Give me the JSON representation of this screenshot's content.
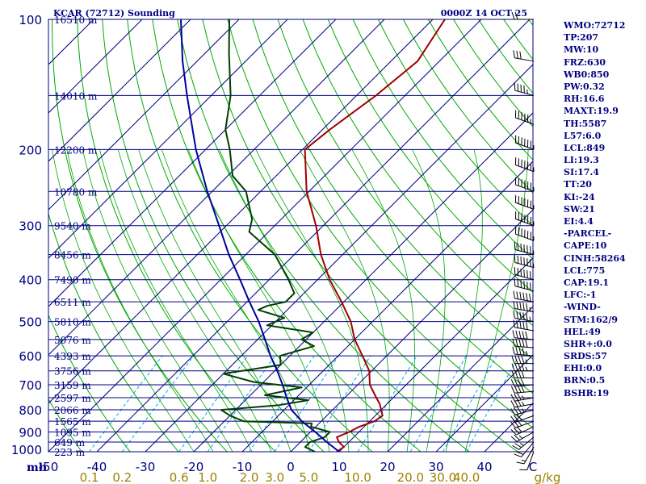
{
  "chart_data": {
    "type": "line",
    "title": "KCAR (72712) Sounding",
    "valid_time": "0000Z 14 OCT 25",
    "xlabel": "C",
    "mixing_ratio_unit": "g/kg",
    "pressure_unit": "mb",
    "xlim": [
      -50,
      50
    ],
    "ylim": [
      1000,
      100
    ],
    "y_scale": "log-pressure",
    "x_ticks": [
      "-50",
      "-40",
      "-30",
      "-20",
      "-10",
      "0",
      "10",
      "20",
      "30",
      "40",
      "C"
    ],
    "x_tick_values": [
      -50,
      -40,
      -30,
      -20,
      -10,
      0,
      10,
      20,
      30,
      40
    ],
    "pressure_ticks": [
      100,
      200,
      300,
      400,
      500,
      600,
      700,
      800,
      900,
      1000
    ],
    "height_levels": [
      {
        "p": 100,
        "label": "16510 m"
      },
      {
        "p": 150,
        "label": "14010 m"
      },
      {
        "p": 200,
        "label": "12200 m"
      },
      {
        "p": 250,
        "label": "10780 m"
      },
      {
        "p": 300,
        "label": "9540 m"
      },
      {
        "p": 350,
        "label": "8456 m"
      },
      {
        "p": 400,
        "label": "7490 m"
      },
      {
        "p": 450,
        "label": "6511 m"
      },
      {
        "p": 500,
        "label": "5810 m"
      },
      {
        "p": 550,
        "label": "5076 m"
      },
      {
        "p": 600,
        "label": "4393 m"
      },
      {
        "p": 650,
        "label": "3756 m"
      },
      {
        "p": 700,
        "label": "3159 m"
      },
      {
        "p": 750,
        "label": "2597 m"
      },
      {
        "p": 800,
        "label": "2066 m"
      },
      {
        "p": 850,
        "label": "1565 m"
      },
      {
        "p": 900,
        "label": "1095 m"
      },
      {
        "p": 950,
        "label": "649 m"
      },
      {
        "p": 1000,
        "label": "223 m"
      }
    ],
    "mixing_ratio_ticks": [
      {
        "label": "0.1",
        "value": 0.1
      },
      {
        "label": "0.2",
        "value": 0.2
      },
      {
        "label": "0.6",
        "value": 0.6
      },
      {
        "label": "1.0",
        "value": 1.0
      },
      {
        "label": "2.0",
        "value": 2.0
      },
      {
        "label": "3.0",
        "value": 3.0
      },
      {
        "label": "5.0",
        "value": 5.0
      },
      {
        "label": "10.0",
        "value": 10.0
      },
      {
        "label": "20.0",
        "value": 20.0
      },
      {
        "label": "30.0",
        "value": 30.0
      },
      {
        "label": "40.0",
        "value": 40.0
      },
      {
        "label": "g/kg",
        "value": null
      }
    ],
    "colors": {
      "temperature": "#a00000",
      "dewpoint": "#004000",
      "parcel": "#0000a0",
      "isobars": "#000080",
      "isotherms": "#000080",
      "dry_adiabats": "#00aa00",
      "moist_adiabats": "#00aa00",
      "mixing_ratio": "#00aaee",
      "labels": "#000080",
      "mixing_labels": "#a08000"
    },
    "series": [
      {
        "key": "temperature",
        "points": [
          {
            "p": 1000,
            "t": 9.5
          },
          {
            "p": 975,
            "t": 10.0
          },
          {
            "p": 950,
            "t": 8.0
          },
          {
            "p": 925,
            "t": 6.5
          },
          {
            "p": 900,
            "t": 8.0
          },
          {
            "p": 875,
            "t": 9.0
          },
          {
            "p": 850,
            "t": 11.0
          },
          {
            "p": 825,
            "t": 11.5
          },
          {
            "p": 800,
            "t": 10.0
          },
          {
            "p": 775,
            "t": 8.5
          },
          {
            "p": 750,
            "t": 6.5
          },
          {
            "p": 700,
            "t": 2.5
          },
          {
            "p": 650,
            "t": -0.5
          },
          {
            "p": 600,
            "t": -5.0
          },
          {
            "p": 550,
            "t": -10.0
          },
          {
            "p": 500,
            "t": -14.5
          },
          {
            "p": 450,
            "t": -20.5
          },
          {
            "p": 400,
            "t": -27.5
          },
          {
            "p": 350,
            "t": -34.5
          },
          {
            "p": 300,
            "t": -41.5
          },
          {
            "p": 250,
            "t": -50.5
          },
          {
            "p": 200,
            "t": -59.5
          },
          {
            "p": 180,
            "t": -58.5
          },
          {
            "p": 150,
            "t": -56.0
          },
          {
            "p": 125,
            "t": -54.5
          },
          {
            "p": 100,
            "t": -57.5
          }
        ]
      },
      {
        "key": "dewpoint",
        "points": [
          {
            "p": 1000,
            "t": 5.0
          },
          {
            "p": 975,
            "t": 2.0
          },
          {
            "p": 950,
            "t": 2.0
          },
          {
            "p": 925,
            "t": 4.0
          },
          {
            "p": 900,
            "t": 4.0
          },
          {
            "p": 875,
            "t": -1.0
          },
          {
            "p": 860,
            "t": -1.5
          },
          {
            "p": 850,
            "t": -16.0
          },
          {
            "p": 825,
            "t": -20.0
          },
          {
            "p": 800,
            "t": -23.0
          },
          {
            "p": 780,
            "t": -12.0
          },
          {
            "p": 760,
            "t": -7.0
          },
          {
            "p": 740,
            "t": -17.0
          },
          {
            "p": 710,
            "t": -11.0
          },
          {
            "p": 690,
            "t": -22.0
          },
          {
            "p": 660,
            "t": -30.0
          },
          {
            "p": 630,
            "t": -20.0
          },
          {
            "p": 600,
            "t": -22.0
          },
          {
            "p": 570,
            "t": -17.0
          },
          {
            "p": 550,
            "t": -21.0
          },
          {
            "p": 530,
            "t": -20.0
          },
          {
            "p": 510,
            "t": -31.0
          },
          {
            "p": 490,
            "t": -29.0
          },
          {
            "p": 470,
            "t": -36.0
          },
          {
            "p": 460,
            "t": -35.0
          },
          {
            "p": 450,
            "t": -32.0
          },
          {
            "p": 430,
            "t": -32.0
          },
          {
            "p": 400,
            "t": -36.0
          },
          {
            "p": 350,
            "t": -44.0
          },
          {
            "p": 310,
            "t": -54.0
          },
          {
            "p": 290,
            "t": -56.0
          },
          {
            "p": 250,
            "t": -63.0
          },
          {
            "p": 230,
            "t": -69.0
          },
          {
            "p": 200,
            "t": -75.0
          },
          {
            "p": 180,
            "t": -80.0
          },
          {
            "p": 150,
            "t": -86.0
          },
          {
            "p": 120,
            "t": -95.0
          },
          {
            "p": 100,
            "t": -102.0
          }
        ]
      },
      {
        "key": "parcel",
        "points": [
          {
            "p": 1000,
            "t": 10.0
          },
          {
            "p": 950,
            "t": 5.5
          },
          {
            "p": 900,
            "t": 1.0
          },
          {
            "p": 850,
            "t": -4.0
          },
          {
            "p": 800,
            "t": -8.5
          },
          {
            "p": 750,
            "t": -12.0
          },
          {
            "p": 700,
            "t": -15.5
          },
          {
            "p": 650,
            "t": -19.5
          },
          {
            "p": 600,
            "t": -24.0
          },
          {
            "p": 550,
            "t": -28.5
          },
          {
            "p": 500,
            "t": -33.5
          },
          {
            "p": 450,
            "t": -39.5
          },
          {
            "p": 400,
            "t": -46.0
          },
          {
            "p": 350,
            "t": -53.5
          },
          {
            "p": 300,
            "t": -61.5
          },
          {
            "p": 250,
            "t": -71.0
          },
          {
            "p": 200,
            "t": -82.0
          },
          {
            "p": 150,
            "t": -95.0
          },
          {
            "p": 125,
            "t": -103.0
          },
          {
            "p": 100,
            "t": -112.0
          }
        ]
      }
    ],
    "wind_barbs_note": "",
    "wind_profile": [
      {
        "p": 1000,
        "dir": 200,
        "spd": 10
      },
      {
        "p": 975,
        "dir": 210,
        "spd": 15
      },
      {
        "p": 950,
        "dir": 220,
        "spd": 20
      },
      {
        "p": 925,
        "dir": 230,
        "spd": 25
      },
      {
        "p": 900,
        "dir": 240,
        "spd": 25
      },
      {
        "p": 875,
        "dir": 245,
        "spd": 30
      },
      {
        "p": 850,
        "dir": 250,
        "spd": 30
      },
      {
        "p": 825,
        "dir": 250,
        "spd": 30
      },
      {
        "p": 800,
        "dir": 255,
        "spd": 35
      },
      {
        "p": 775,
        "dir": 260,
        "spd": 35
      },
      {
        "p": 750,
        "dir": 260,
        "spd": 35
      },
      {
        "p": 725,
        "dir": 265,
        "spd": 40
      },
      {
        "p": 700,
        "dir": 265,
        "spd": 40
      },
      {
        "p": 675,
        "dir": 270,
        "spd": 40
      },
      {
        "p": 650,
        "dir": 270,
        "spd": 45
      },
      {
        "p": 625,
        "dir": 270,
        "spd": 45
      },
      {
        "p": 600,
        "dir": 275,
        "spd": 45
      },
      {
        "p": 575,
        "dir": 275,
        "spd": 50
      },
      {
        "p": 550,
        "dir": 275,
        "spd": 50
      },
      {
        "p": 525,
        "dir": 280,
        "spd": 50
      },
      {
        "p": 500,
        "dir": 280,
        "spd": 55
      },
      {
        "p": 475,
        "dir": 280,
        "spd": 55
      },
      {
        "p": 450,
        "dir": 280,
        "spd": 60
      },
      {
        "p": 425,
        "dir": 285,
        "spd": 60
      },
      {
        "p": 400,
        "dir": 285,
        "spd": 60
      },
      {
        "p": 375,
        "dir": 285,
        "spd": 65
      },
      {
        "p": 350,
        "dir": 285,
        "spd": 65
      },
      {
        "p": 325,
        "dir": 290,
        "spd": 70
      },
      {
        "p": 300,
        "dir": 290,
        "spd": 70
      },
      {
        "p": 275,
        "dir": 290,
        "spd": 70
      },
      {
        "p": 250,
        "dir": 290,
        "spd": 75
      },
      {
        "p": 225,
        "dir": 290,
        "spd": 75
      },
      {
        "p": 200,
        "dir": 290,
        "spd": 65
      },
      {
        "p": 175,
        "dir": 290,
        "spd": 55
      },
      {
        "p": 150,
        "dir": 285,
        "spd": 45
      },
      {
        "p": 125,
        "dir": 280,
        "spd": 30
      },
      {
        "p": 100,
        "dir": 270,
        "spd": 20
      }
    ],
    "indices": [
      "WMO:72712",
      "TP:207",
      "MW:10",
      "FRZ:630",
      "WB0:850",
      "PW:0.32",
      "RH:16.6",
      "MAXT:19.9",
      "TH:5587",
      "L57:6.0",
      "LCL:849",
      "LI:19.3",
      "SI:17.4",
      "TT:20",
      "KI:-24",
      "SW:21",
      "EI:4.4",
      "-PARCEL-",
      "CAPE:10",
      "CINH:58264",
      "LCL:775",
      "CAP:19.1",
      "LFC:-1",
      "-WIND-",
      "STM:162/9",
      "HEL:49",
      "SHR+:0.0",
      "SRDS:57",
      "EHI:0.0",
      "BRN:0.5",
      "BSHR:19"
    ]
  }
}
